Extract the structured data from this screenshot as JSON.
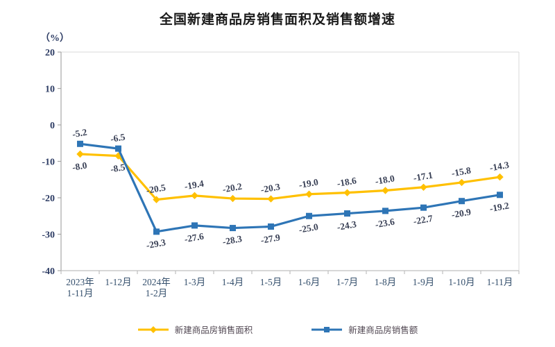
{
  "chart_data": {
    "type": "line",
    "title": "全国新建商品房销售面积及销售额增速",
    "unit_label": "（%）",
    "xlabel": "",
    "ylabel": "（%）",
    "ylim": [
      -40,
      20
    ],
    "ytick_step": 10,
    "yticks": [
      20,
      10,
      0,
      -10,
      -20,
      -30,
      -40
    ],
    "grid": false,
    "legend_position": "bottom",
    "categories": [
      [
        "2023年",
        "1-11月"
      ],
      [
        "1-12月"
      ],
      [
        "2024年",
        "1-2月"
      ],
      [
        "1-3月"
      ],
      [
        "1-4月"
      ],
      [
        "1-5月"
      ],
      [
        "1-6月"
      ],
      [
        "1-7月"
      ],
      [
        "1-8月"
      ],
      [
        "1-9月"
      ],
      [
        "1-10月"
      ],
      [
        "1-11月"
      ]
    ],
    "series": [
      {
        "name": "新建商品房销售面积",
        "color": "#FFC000",
        "marker": "diamond",
        "values": [
          -8.0,
          -8.5,
          -20.5,
          -19.4,
          -20.2,
          -20.3,
          -19.0,
          -18.6,
          -18.0,
          -17.1,
          -15.8,
          -14.3
        ],
        "label_side": [
          "below",
          "below",
          "above",
          "above",
          "above",
          "above",
          "above",
          "above",
          "above",
          "above",
          "above",
          "above"
        ]
      },
      {
        "name": "新建商品房销售额",
        "color": "#2E75B6",
        "marker": "square",
        "values": [
          -5.2,
          -6.5,
          -29.3,
          -27.6,
          -28.3,
          -27.9,
          -25.0,
          -24.3,
          -23.6,
          -22.7,
          -20.9,
          -19.2
        ],
        "label_side": [
          "above",
          "above",
          "below",
          "below",
          "below",
          "below",
          "below",
          "below",
          "below",
          "below",
          "below",
          "below"
        ]
      }
    ],
    "colors": {
      "axis_line": "#A6A6A6",
      "plot_border": "#D9D9D9",
      "bottom_axis": "#BFBFBF",
      "title_text": "#1a1a1a",
      "ytick_text": "#2d3c64",
      "xtick_text": "#35506d",
      "data_label_text": "#3a4156",
      "legend_text": "#514752"
    }
  }
}
